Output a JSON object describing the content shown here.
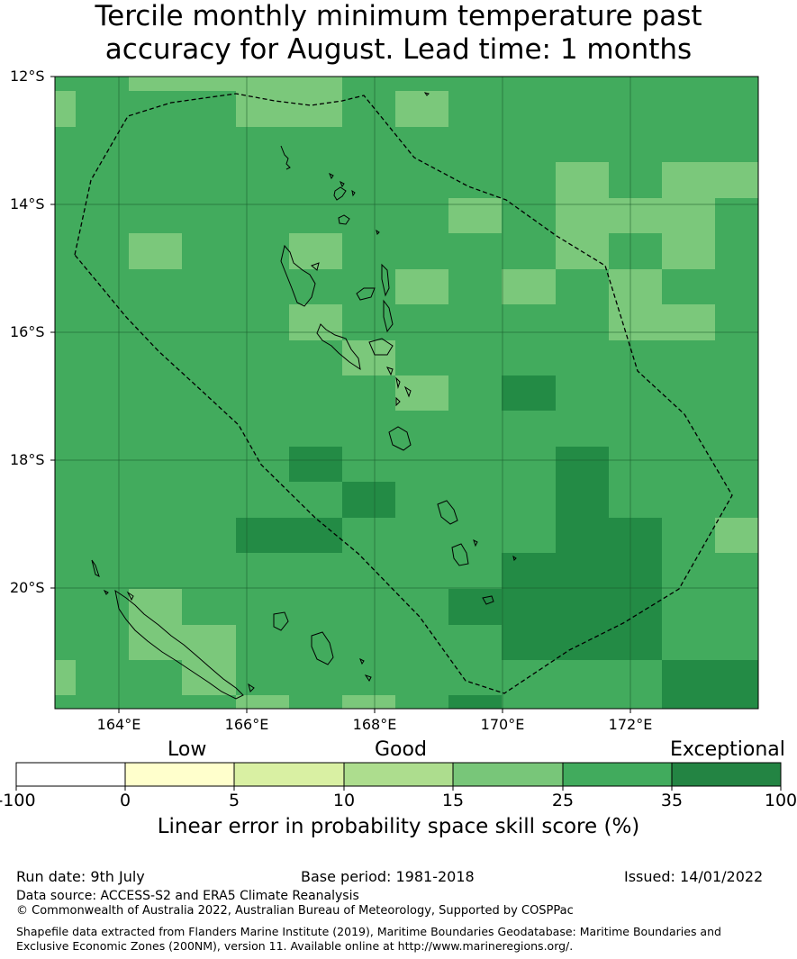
{
  "title_line1": "Tercile monthly minimum temperature past",
  "title_line2": "accuracy for August. Lead time: 1 months",
  "map": {
    "lat_ticks": [
      "12°S",
      "14°S",
      "16°S",
      "18°S",
      "20°S"
    ],
    "lon_ticks": [
      "164°E",
      "166°E",
      "168°E",
      "170°E",
      "172°E"
    ],
    "colors": {
      "level_15_25": "#7bc87b",
      "level_25_35": "#42ab5d",
      "level_35_100": "#238b45"
    }
  },
  "colorbar": {
    "categories": [
      "Low",
      "Good",
      "Exceptional"
    ],
    "ticks": [
      "-100",
      "0",
      "5",
      "10",
      "15",
      "25",
      "35",
      "100"
    ],
    "colors": [
      "#ffffff",
      "#ffffcc",
      "#d9f0a3",
      "#addd8e",
      "#78c679",
      "#41ab5d",
      "#238443"
    ],
    "label": "Linear error in probability space skill score (%)"
  },
  "footer": {
    "run_date": "Run date: 9th July",
    "base_period": "Base period: 1981-2018",
    "issued": "Issued: 14/01/2022",
    "data_source": "Data source: ACCESS-S2 and ERA5 Climate Reanalysis",
    "copyright": "© Commonwealth of Australia 2022, Australian Bureau of Meteorology, Supported by COSPPac",
    "shapefile": "Shapefile data extracted from Flanders Marine Institute (2019), Maritime Boundaries Geodatabase: Maritime Boundaries and Exclusive Economic Zones (200NM), version 11. Available online at http://www.marineregions.org/."
  }
}
